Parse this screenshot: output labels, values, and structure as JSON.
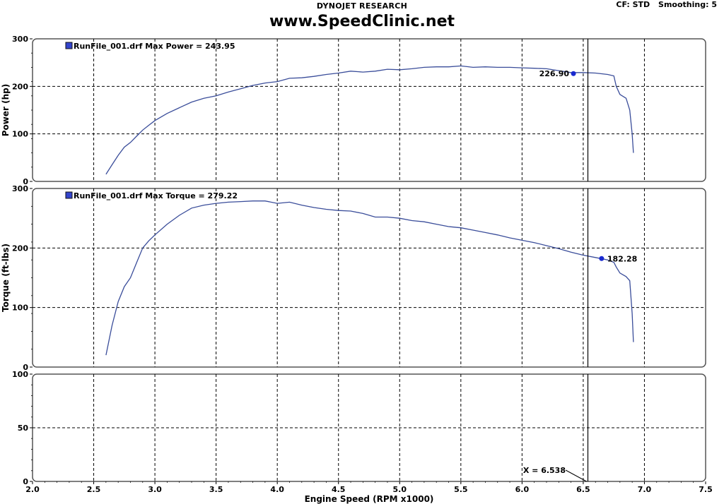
{
  "header": {
    "top_title": "DYNOJET RESEARCH",
    "subtitle": "www.SpeedClinic.net",
    "cf": "CF: STD",
    "smoothing": "Smoothing: 5"
  },
  "chart_data": {
    "type": "line",
    "xlabel": "Engine Speed (RPM x1000)",
    "xlim": [
      2.0,
      7.5
    ],
    "x_ticks": [
      "2.0",
      "2.5",
      "3.0",
      "3.5",
      "4.0",
      "4.5",
      "5.0",
      "5.5",
      "6.0",
      "6.5",
      "7.0",
      "7.5"
    ],
    "cursor_x": 6.538,
    "cursor_label": "X = 6.538",
    "panels": [
      {
        "name": "power",
        "ylabel": "Power (hp)",
        "ylim": [
          0,
          300
        ],
        "y_ticks": [
          "0",
          "100",
          "200",
          "300"
        ],
        "legend": "RunFile_001.drf Max Power = 243.95",
        "marker": {
          "x": 6.42,
          "y": 226.9,
          "label": "226.90"
        },
        "series": [
          {
            "name": "RunFile_001.drf",
            "x": [
              2.6,
              2.65,
              2.7,
              2.75,
              2.8,
              2.85,
              2.9,
              2.95,
              3.0,
              3.1,
              3.2,
              3.3,
              3.4,
              3.5,
              3.6,
              3.7,
              3.8,
              3.9,
              4.0,
              4.1,
              4.2,
              4.3,
              4.4,
              4.5,
              4.6,
              4.7,
              4.8,
              4.9,
              5.0,
              5.1,
              5.2,
              5.3,
              5.4,
              5.5,
              5.6,
              5.7,
              5.8,
              5.9,
              6.0,
              6.1,
              6.2,
              6.3,
              6.4,
              6.5,
              6.6,
              6.7,
              6.75,
              6.77,
              6.8,
              6.85,
              6.88,
              6.9,
              6.91
            ],
            "y": [
              15,
              35,
              55,
              72,
              82,
              95,
              108,
              118,
              128,
              143,
              155,
              167,
              175,
              180,
              188,
              195,
              202,
              207,
              210,
              217,
              218,
              221,
              225,
              228,
              232,
              230,
              232,
              236,
              235,
              237,
              240,
              241,
              241,
              243,
              240,
              241,
              240,
              240,
              239,
              238,
              237,
              233,
              229,
              229,
              228,
              225,
              222,
              200,
              183,
              175,
              150,
              100,
              60
            ]
          }
        ]
      },
      {
        "name": "torque",
        "ylabel": "Torque (ft-lbs)",
        "ylim": [
          0,
          300
        ],
        "y_ticks": [
          "0",
          "100",
          "200",
          "300"
        ],
        "legend": "RunFile_001.drf Max Torque = 279.22",
        "marker": {
          "x": 6.65,
          "y": 182.28,
          "label": "182.28"
        },
        "series": [
          {
            "name": "RunFile_001.drf",
            "x": [
              2.6,
              2.65,
              2.7,
              2.75,
              2.8,
              2.85,
              2.9,
              2.95,
              3.0,
              3.1,
              3.2,
              3.3,
              3.4,
              3.5,
              3.6,
              3.7,
              3.8,
              3.9,
              4.0,
              4.1,
              4.2,
              4.3,
              4.4,
              4.5,
              4.6,
              4.7,
              4.8,
              4.9,
              5.0,
              5.1,
              5.2,
              5.3,
              5.4,
              5.5,
              5.6,
              5.7,
              5.8,
              5.9,
              6.0,
              6.1,
              6.2,
              6.3,
              6.4,
              6.5,
              6.6,
              6.7,
              6.75,
              6.77,
              6.8,
              6.85,
              6.88,
              6.9,
              6.91
            ],
            "y": [
              20,
              70,
              110,
              135,
              150,
              175,
              200,
              212,
              222,
              240,
              255,
              267,
              272,
              275,
              277,
              278,
              279,
              279,
              275,
              277,
              272,
              268,
              265,
              263,
              262,
              258,
              252,
              252,
              250,
              246,
              244,
              240,
              236,
              234,
              230,
              226,
              222,
              217,
              213,
              209,
              204,
              199,
              193,
              188,
              184,
              180,
              176,
              168,
              158,
              152,
              145,
              90,
              42
            ]
          }
        ]
      },
      {
        "name": "third",
        "ylabel": "",
        "ylim": [
          0,
          100
        ],
        "y_ticks": [
          "0",
          "50",
          "100"
        ],
        "legend": "",
        "series": []
      }
    ]
  }
}
